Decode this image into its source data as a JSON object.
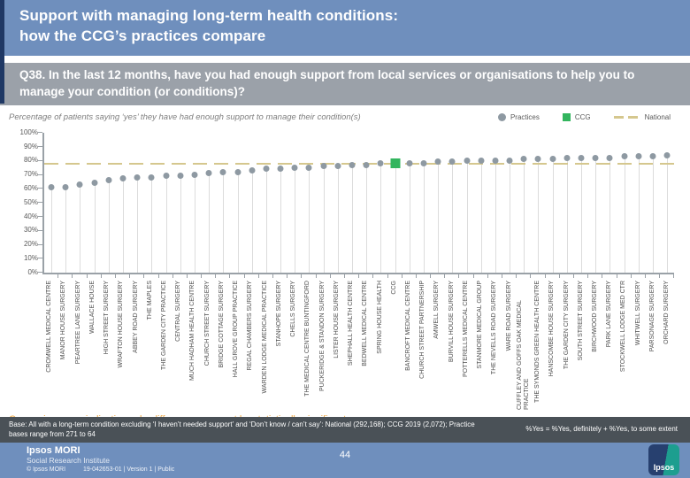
{
  "colors": {
    "header_bg": "#6f8fbd",
    "stripe": "#1f3864",
    "question_bg": "#9ba1a9",
    "practice": "#8e99a2",
    "ccg": "#33b55e",
    "national": "#d5c78e",
    "note_orange": "#eda63f",
    "base_bar_bg": "#4a5157"
  },
  "header": {
    "title_line1": "Support with managing long-term health conditions:",
    "title_line2": "how the CCG’s practices compare"
  },
  "question": {
    "text": "Q38. In the last 12 months, have you had enough support from local services or organisations to help you to manage your condition (or conditions)?"
  },
  "chart_data": {
    "type": "scatter",
    "title": "Percentage of patients saying ‘yes’ they have had enough support to manage their condition(s)",
    "xlabel": "",
    "ylabel": "",
    "ylim": [
      0,
      100
    ],
    "ytick_step": 10,
    "ytick_suffix": "%",
    "grid": false,
    "legend_position": "top-right",
    "legend": [
      {
        "label": "Practices",
        "type": "dot"
      },
      {
        "label": "CCG",
        "type": "square"
      },
      {
        "label": "National",
        "type": "dash"
      }
    ],
    "national_value": 78,
    "ccg_index": 24,
    "categories": [
      "CROMWELL MEDICAL CENTRE",
      "MANOR HOUSE SURGERY",
      "PEARTREE LANE SURGERY",
      "WALLACE HOUSE",
      "HIGH STREET SURGERY",
      "WRAFTON HOUSE SURGERY",
      "ABBEY ROAD SURGERY",
      "THE MAPLES",
      "THE GARDEN CITY PRACTICE",
      "CENTRAL SURGERY",
      "MUCH HADHAM HEALTH CENTRE",
      "CHURCH STREET SURGERY",
      "BRIDGE COTTAGE SURGERY",
      "HALL GROVE GROUP PRACTICE",
      "REGAL CHAMBERS SURGERY",
      "WARDEN LODGE MEDICAL PRACTICE",
      "STANHOPE SURGERY",
      "CHELLS SURGERY",
      "THE MEDICAL CENTRE BUNTINGFORD",
      "PUCKERIDGE & STANDON SURGERY",
      "LISTER HOUSE SURGERY",
      "SHEPHALL HEALTH CENTRE",
      "BEDWELL MEDICAL CENTRE",
      "SPRING HOUSE HEALTH",
      "CCG",
      "BANCROFT MEDICAL CENTRE",
      "CHURCH STREET PARTNERSHIP",
      "AMWELL SURGERY",
      "BURVILL HOUSE SURGERY",
      "POTTERELLS MEDICAL CENTRE",
      "STANMORE MEDICAL GROUP",
      "THE NEVELLS ROAD SURGERY",
      "WARE ROAD SURGERY",
      "CUFFLEY AND GOFFS OAK MEDICAL PRACTICE",
      "THE SYMONDS GREEN HEALTH CENTRE",
      "HANSCOMBE HOUSE SURGERY",
      "THE GARDEN CITY SURGERY",
      "SOUTH STREET SURGERY",
      "BIRCHWOOD SURGERY",
      "PARK LANE SURGERY",
      "STOCKWELL LODGE MED CTR",
      "WHITWELL SURGERY",
      "PARSONAGE SURGERY",
      "ORCHARD SURGERY"
    ],
    "values": [
      61,
      61,
      63,
      64,
      66,
      67,
      68,
      68,
      69,
      69,
      70,
      71,
      72,
      72,
      73,
      74,
      74,
      75,
      75,
      76,
      76,
      77,
      77,
      78,
      78,
      78,
      78,
      79,
      79,
      80,
      80,
      80,
      80,
      81,
      81,
      81,
      82,
      82,
      82,
      82,
      83,
      83,
      83,
      84
    ]
  },
  "notes": {
    "comparison": "Comparisons are indicative only: differences may not be statistically significant",
    "base": "Base: All with a long-term condition excluding ‘I haven’t needed support’ and ‘Don’t know / can’t say’: National (292,168); CCG 2019 (2,072); Practice bases range from 271 to 64",
    "yes_definition": "%Yes = %Yes, definitely + %Yes, to some extent"
  },
  "footer": {
    "brand": "Ipsos MORI",
    "brand_sub": "Social Research Institute",
    "copyright": "© Ipsos MORI",
    "doc_ref": "19-042653-01 | Version 1 | Public",
    "page": "44",
    "logo_text": "Ipsos"
  }
}
